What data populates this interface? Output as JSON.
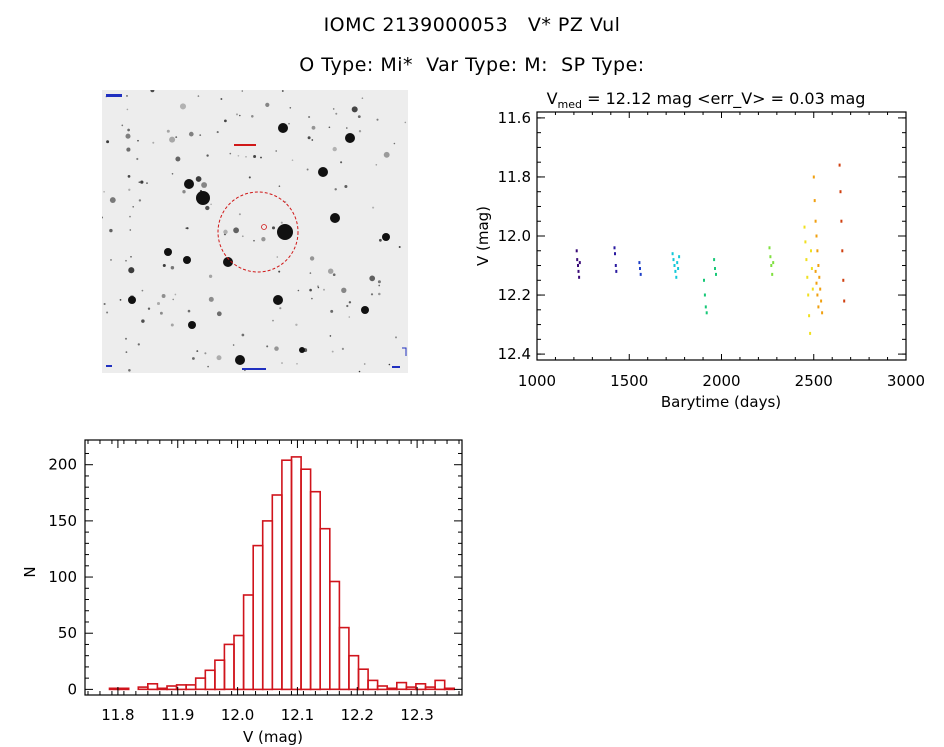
{
  "header": {
    "title": "IOMC 2139000053   V* PZ Vul",
    "subtitle": "O Type: Mi*  Var Type: M:  SP Type:"
  },
  "colors": {
    "histogram": "#d0141c",
    "circle": "#d01818",
    "series": [
      "#3a0a78",
      "#2a1aa0",
      "#1e40c8",
      "#10c8d8",
      "#18c878",
      "#80e040",
      "#f0e020",
      "#f0a010",
      "#d04010"
    ]
  },
  "chart_data": [
    {
      "type": "image",
      "subject": "finder-chart",
      "marker": "circle"
    },
    {
      "type": "scatter",
      "title": "V_med = 12.12 mag <err_V> = 0.03 mag",
      "title_parts": {
        "v": "V",
        "sub": "med",
        "rest": " = 12.12 mag <err_V> = 0.03 mag"
      },
      "xlabel": "Barytime (days)",
      "ylabel": "V (mag)",
      "xlim": [
        1000,
        3000
      ],
      "ylim": [
        12.42,
        11.58
      ],
      "y_inverted": true,
      "xticks": [
        1000,
        1500,
        2000,
        2500,
        3000
      ],
      "yticks": [
        "11.6",
        "11.8",
        "12.0",
        "12.2",
        "12.4"
      ],
      "series": [
        {
          "x": [
            1215,
            1218,
            1222,
            1225,
            1228,
            1232
          ],
          "y": [
            12.05,
            12.08,
            12.1,
            12.12,
            12.14,
            12.09
          ],
          "color": "#3a0a78"
        },
        {
          "x": [
            1420,
            1423,
            1427,
            1430
          ],
          "y": [
            12.04,
            12.06,
            12.1,
            12.12
          ],
          "color": "#2a1aa0"
        },
        {
          "x": [
            1555,
            1558,
            1562
          ],
          "y": [
            12.09,
            12.11,
            12.13
          ],
          "color": "#1e40c8"
        },
        {
          "x": [
            1735,
            1740,
            1745,
            1750,
            1755,
            1760,
            1765,
            1770
          ],
          "y": [
            12.06,
            12.08,
            12.1,
            12.12,
            12.14,
            12.09,
            12.11,
            12.07
          ],
          "color": "#10c8d8"
        },
        {
          "x": [
            1905,
            1910,
            1915,
            1920,
            1960,
            1965,
            1970
          ],
          "y": [
            12.15,
            12.2,
            12.24,
            12.26,
            12.08,
            12.11,
            12.13
          ],
          "color": "#18c878"
        },
        {
          "x": [
            2260,
            2265,
            2270,
            2275,
            2280
          ],
          "y": [
            12.04,
            12.07,
            12.1,
            12.13,
            12.09
          ],
          "color": "#80e040"
        },
        {
          "x": [
            2450,
            2455,
            2460,
            2465,
            2470,
            2475,
            2480,
            2485,
            2490,
            2495
          ],
          "y": [
            11.97,
            12.02,
            12.08,
            12.14,
            12.2,
            12.27,
            12.33,
            12.05,
            12.11,
            12.18
          ],
          "color": "#f0e020"
        },
        {
          "x": [
            2500,
            2505,
            2510,
            2515,
            2520,
            2525,
            2530,
            2535,
            2540,
            2545,
            2510,
            2515,
            2520,
            2525
          ],
          "y": [
            11.8,
            11.88,
            11.95,
            12.0,
            12.05,
            12.1,
            12.14,
            12.18,
            12.22,
            12.26,
            12.12,
            12.16,
            12.2,
            12.24
          ],
          "color": "#f0a010"
        },
        {
          "x": [
            2640,
            2645,
            2650,
            2655,
            2660,
            2665
          ],
          "y": [
            11.76,
            11.85,
            11.95,
            12.05,
            12.15,
            12.22
          ],
          "color": "#d04010"
        }
      ]
    },
    {
      "type": "bar",
      "subtype": "histogram",
      "xlabel": "V (mag)",
      "ylabel": "N",
      "xlim": [
        11.745,
        12.375
      ],
      "ylim": [
        -5,
        222
      ],
      "xticks": [
        "11.8",
        "11.9",
        "12.0",
        "12.1",
        "12.2",
        "12.3"
      ],
      "yticks": [
        "0",
        "50",
        "100",
        "150",
        "200"
      ],
      "bin_width": 0.016,
      "bin_starts": [
        11.77,
        11.786,
        11.802,
        11.818,
        11.834,
        11.85,
        11.866,
        11.882,
        11.898,
        11.914,
        11.93,
        11.946,
        11.962,
        11.978,
        11.994,
        12.01,
        12.026,
        12.042,
        12.058,
        12.074,
        12.09,
        12.106,
        12.122,
        12.138,
        12.154,
        12.17,
        12.186,
        12.202,
        12.218,
        12.234,
        12.25,
        12.266,
        12.282,
        12.298,
        12.314,
        12.33,
        12.346
      ],
      "counts": [
        0,
        1,
        1,
        0,
        2,
        5,
        1,
        3,
        4,
        4,
        10,
        17,
        26,
        40,
        48,
        84,
        128,
        150,
        173,
        204,
        207,
        196,
        176,
        143,
        96,
        55,
        30,
        18,
        8,
        3,
        1,
        6,
        2,
        5,
        2,
        8,
        1
      ]
    }
  ]
}
